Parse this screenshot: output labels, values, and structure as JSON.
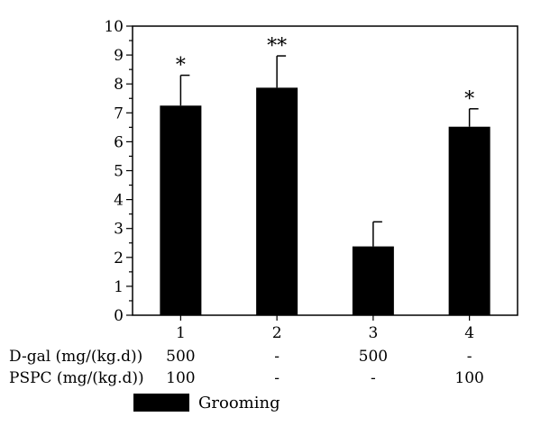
{
  "chart_data": {
    "type": "bar",
    "categories": [
      "1",
      "2",
      "3",
      "4"
    ],
    "series": [
      {
        "name": "Grooming",
        "values": [
          7.25,
          7.87,
          2.38,
          6.52
        ],
        "errors": [
          1.05,
          1.1,
          0.85,
          0.62
        ],
        "annotations": [
          "*",
          "**",
          "",
          "*"
        ]
      }
    ],
    "ylim": [
      0,
      10
    ],
    "yticks": [
      "0",
      "1",
      "2",
      "3",
      "4",
      "5",
      "6",
      "7",
      "8",
      "9",
      "10"
    ],
    "title": "",
    "xlabel": "",
    "ylabel": "",
    "bar_color": "#000000",
    "treatment_table": [
      {
        "label": "D-gal (mg/(kg.d))",
        "values": [
          "500",
          "-",
          "500",
          "-"
        ]
      },
      {
        "label": "PSPC (mg/(kg.d))",
        "values": [
          "100",
          "-",
          "-",
          "100"
        ]
      }
    ],
    "legend": {
      "label": "Grooming",
      "position": "bottom-left"
    }
  }
}
